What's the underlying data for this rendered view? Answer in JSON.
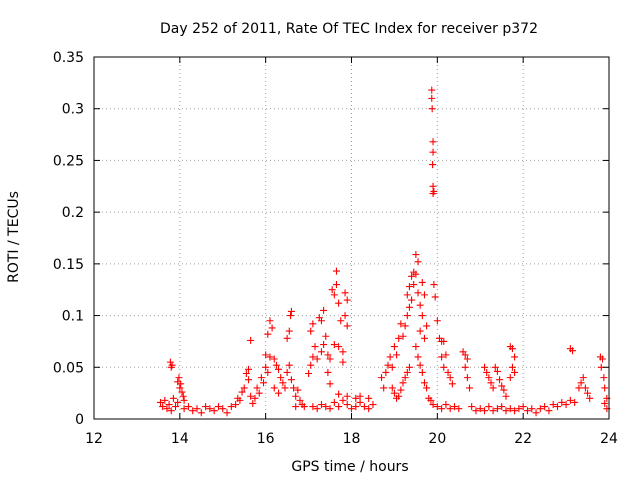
{
  "chart_data": {
    "type": "scatter",
    "title": "Day 252 of 2011, Rate Of TEC Index for receiver p372",
    "xlabel": "GPS time / hours",
    "ylabel": "ROTI / TECUs",
    "xlim": [
      12,
      24
    ],
    "ylim": [
      0,
      0.35
    ],
    "x_ticks": [
      12,
      14,
      16,
      18,
      20,
      22,
      24
    ],
    "x_tick_labels": [
      "12",
      "14",
      "16",
      "18",
      "20",
      "22",
      "24"
    ],
    "y_ticks": [
      0,
      0.05,
      0.1,
      0.15,
      0.2,
      0.25,
      0.3,
      0.35
    ],
    "y_tick_labels": [
      "0",
      "0.05",
      "0.1",
      "0.15",
      "0.2",
      "0.25",
      "0.3",
      "0.35"
    ],
    "grid": true,
    "marker": "+",
    "series_color": "#ff0000",
    "points": [
      [
        13.55,
        0.016
      ],
      [
        13.6,
        0.012
      ],
      [
        13.65,
        0.018
      ],
      [
        13.7,
        0.01
      ],
      [
        13.75,
        0.014
      ],
      [
        13.8,
        0.008
      ],
      [
        13.85,
        0.02
      ],
      [
        13.9,
        0.012
      ],
      [
        13.95,
        0.016
      ],
      [
        13.78,
        0.055
      ],
      [
        13.82,
        0.052
      ],
      [
        13.8,
        0.05
      ],
      [
        13.95,
        0.036
      ],
      [
        14.0,
        0.03
      ],
      [
        14.05,
        0.026
      ],
      [
        14.02,
        0.034
      ],
      [
        14.08,
        0.022
      ],
      [
        13.98,
        0.04
      ],
      [
        14.1,
        0.018
      ],
      [
        14.1,
        0.01
      ],
      [
        14.2,
        0.012
      ],
      [
        14.3,
        0.008
      ],
      [
        14.4,
        0.01
      ],
      [
        14.5,
        0.006
      ],
      [
        14.6,
        0.012
      ],
      [
        14.7,
        0.01
      ],
      [
        14.8,
        0.008
      ],
      [
        14.9,
        0.012
      ],
      [
        15.0,
        0.01
      ],
      [
        15.1,
        0.006
      ],
      [
        15.2,
        0.012
      ],
      [
        15.3,
        0.014
      ],
      [
        15.35,
        0.02
      ],
      [
        15.4,
        0.018
      ],
      [
        15.45,
        0.026
      ],
      [
        15.5,
        0.03
      ],
      [
        15.55,
        0.044
      ],
      [
        15.6,
        0.048
      ],
      [
        15.6,
        0.038
      ],
      [
        15.65,
        0.022
      ],
      [
        15.7,
        0.015
      ],
      [
        15.65,
        0.076
      ],
      [
        15.75,
        0.02
      ],
      [
        15.8,
        0.03
      ],
      [
        15.85,
        0.025
      ],
      [
        15.9,
        0.04
      ],
      [
        15.95,
        0.035
      ],
      [
        16.0,
        0.05
      ],
      [
        16.05,
        0.045
      ],
      [
        16.1,
        0.06
      ],
      [
        16.0,
        0.062
      ],
      [
        16.05,
        0.082
      ],
      [
        16.1,
        0.095
      ],
      [
        16.15,
        0.088
      ],
      [
        16.2,
        0.058
      ],
      [
        16.25,
        0.052
      ],
      [
        16.3,
        0.048
      ],
      [
        16.35,
        0.04
      ],
      [
        16.4,
        0.035
      ],
      [
        16.2,
        0.03
      ],
      [
        16.3,
        0.025
      ],
      [
        16.45,
        0.03
      ],
      [
        16.5,
        0.045
      ],
      [
        16.55,
        0.052
      ],
      [
        16.5,
        0.078
      ],
      [
        16.55,
        0.085
      ],
      [
        16.58,
        0.1
      ],
      [
        16.6,
        0.104
      ],
      [
        16.6,
        0.038
      ],
      [
        16.65,
        0.03
      ],
      [
        16.7,
        0.022
      ],
      [
        16.75,
        0.028
      ],
      [
        16.8,
        0.018
      ],
      [
        16.7,
        0.012
      ],
      [
        16.85,
        0.014
      ],
      [
        16.9,
        0.012
      ],
      [
        17.0,
        0.044
      ],
      [
        17.05,
        0.052
      ],
      [
        17.1,
        0.06
      ],
      [
        17.05,
        0.085
      ],
      [
        17.1,
        0.092
      ],
      [
        17.15,
        0.07
      ],
      [
        17.2,
        0.058
      ],
      [
        17.25,
        0.098
      ],
      [
        17.3,
        0.095
      ],
      [
        17.35,
        0.105
      ],
      [
        17.3,
        0.065
      ],
      [
        17.35,
        0.072
      ],
      [
        17.4,
        0.08
      ],
      [
        17.45,
        0.062
      ],
      [
        17.5,
        0.058
      ],
      [
        17.45,
        0.045
      ],
      [
        17.5,
        0.034
      ],
      [
        17.55,
        0.125
      ],
      [
        17.6,
        0.12
      ],
      [
        17.65,
        0.13
      ],
      [
        17.65,
        0.143
      ],
      [
        17.7,
        0.112
      ],
      [
        17.75,
        0.095
      ],
      [
        17.6,
        0.072
      ],
      [
        17.7,
        0.07
      ],
      [
        17.8,
        0.065
      ],
      [
        17.85,
        0.122
      ],
      [
        17.9,
        0.115
      ],
      [
        17.85,
        0.1
      ],
      [
        17.9,
        0.09
      ],
      [
        17.8,
        0.055
      ],
      [
        17.1,
        0.012
      ],
      [
        17.2,
        0.01
      ],
      [
        17.3,
        0.014
      ],
      [
        17.4,
        0.012
      ],
      [
        17.5,
        0.01
      ],
      [
        17.6,
        0.016
      ],
      [
        17.7,
        0.012
      ],
      [
        17.8,
        0.018
      ],
      [
        17.9,
        0.014
      ],
      [
        18.0,
        0.01
      ],
      [
        18.1,
        0.012
      ],
      [
        18.2,
        0.016
      ],
      [
        18.3,
        0.012
      ],
      [
        18.4,
        0.01
      ],
      [
        18.5,
        0.014
      ],
      [
        17.7,
        0.024
      ],
      [
        17.9,
        0.022
      ],
      [
        18.1,
        0.02
      ],
      [
        18.2,
        0.022
      ],
      [
        18.4,
        0.02
      ],
      [
        18.7,
        0.04
      ],
      [
        18.75,
        0.03
      ],
      [
        18.8,
        0.045
      ],
      [
        18.85,
        0.052
      ],
      [
        18.9,
        0.06
      ],
      [
        18.95,
        0.05
      ],
      [
        19.0,
        0.07
      ],
      [
        19.05,
        0.062
      ],
      [
        19.1,
        0.078
      ],
      [
        19.15,
        0.092
      ],
      [
        19.2,
        0.08
      ],
      [
        19.25,
        0.09
      ],
      [
        19.3,
        0.1
      ],
      [
        18.95,
        0.03
      ],
      [
        19.0,
        0.025
      ],
      [
        19.05,
        0.02
      ],
      [
        19.1,
        0.022
      ],
      [
        19.15,
        0.028
      ],
      [
        19.2,
        0.035
      ],
      [
        19.25,
        0.04
      ],
      [
        19.3,
        0.045
      ],
      [
        19.35,
        0.05
      ],
      [
        19.3,
        0.12
      ],
      [
        19.35,
        0.128
      ],
      [
        19.4,
        0.138
      ],
      [
        19.45,
        0.142
      ],
      [
        19.5,
        0.14
      ],
      [
        19.55,
        0.152
      ],
      [
        19.5,
        0.159
      ],
      [
        19.45,
        0.13
      ],
      [
        19.4,
        0.115
      ],
      [
        19.35,
        0.108
      ],
      [
        19.55,
        0.122
      ],
      [
        19.6,
        0.11
      ],
      [
        19.65,
        0.132
      ],
      [
        19.7,
        0.12
      ],
      [
        19.65,
        0.1
      ],
      [
        19.6,
        0.085
      ],
      [
        19.7,
        0.078
      ],
      [
        19.75,
        0.09
      ],
      [
        19.5,
        0.07
      ],
      [
        19.55,
        0.06
      ],
      [
        19.6,
        0.052
      ],
      [
        19.65,
        0.045
      ],
      [
        19.7,
        0.035
      ],
      [
        19.75,
        0.03
      ],
      [
        19.8,
        0.02
      ],
      [
        19.85,
        0.018
      ],
      [
        19.87,
        0.318
      ],
      [
        19.87,
        0.31
      ],
      [
        19.88,
        0.3
      ],
      [
        19.9,
        0.268
      ],
      [
        19.9,
        0.258
      ],
      [
        19.89,
        0.246
      ],
      [
        19.9,
        0.225
      ],
      [
        19.92,
        0.22
      ],
      [
        19.9,
        0.218
      ],
      [
        19.92,
        0.13
      ],
      [
        19.95,
        0.118
      ],
      [
        20.0,
        0.095
      ],
      [
        20.05,
        0.078
      ],
      [
        20.1,
        0.075
      ],
      [
        20.15,
        0.075
      ],
      [
        20.1,
        0.06
      ],
      [
        20.2,
        0.062
      ],
      [
        20.15,
        0.05
      ],
      [
        20.25,
        0.045
      ],
      [
        20.3,
        0.04
      ],
      [
        20.35,
        0.034
      ],
      [
        19.9,
        0.014
      ],
      [
        20.0,
        0.012
      ],
      [
        20.1,
        0.01
      ],
      [
        20.2,
        0.014
      ],
      [
        20.3,
        0.01
      ],
      [
        20.4,
        0.012
      ],
      [
        20.5,
        0.01
      ],
      [
        20.6,
        0.065
      ],
      [
        20.65,
        0.062
      ],
      [
        20.7,
        0.058
      ],
      [
        20.65,
        0.05
      ],
      [
        20.7,
        0.04
      ],
      [
        20.75,
        0.03
      ],
      [
        20.8,
        0.012
      ],
      [
        20.9,
        0.008
      ],
      [
        21.0,
        0.01
      ],
      [
        21.1,
        0.008
      ],
      [
        21.2,
        0.012
      ],
      [
        21.3,
        0.008
      ],
      [
        21.4,
        0.01
      ],
      [
        21.5,
        0.012
      ],
      [
        21.6,
        0.008
      ],
      [
        21.7,
        0.01
      ],
      [
        21.8,
        0.008
      ],
      [
        21.9,
        0.01
      ],
      [
        21.1,
        0.05
      ],
      [
        21.15,
        0.045
      ],
      [
        21.2,
        0.04
      ],
      [
        21.25,
        0.035
      ],
      [
        21.3,
        0.03
      ],
      [
        21.35,
        0.05
      ],
      [
        21.4,
        0.046
      ],
      [
        21.45,
        0.038
      ],
      [
        21.5,
        0.032
      ],
      [
        21.55,
        0.028
      ],
      [
        21.6,
        0.022
      ],
      [
        21.7,
        0.07
      ],
      [
        21.75,
        0.068
      ],
      [
        21.8,
        0.06
      ],
      [
        21.75,
        0.05
      ],
      [
        21.8,
        0.045
      ],
      [
        21.7,
        0.04
      ],
      [
        22.0,
        0.012
      ],
      [
        22.1,
        0.008
      ],
      [
        22.2,
        0.01
      ],
      [
        22.3,
        0.006
      ],
      [
        22.4,
        0.01
      ],
      [
        22.5,
        0.012
      ],
      [
        22.6,
        0.008
      ],
      [
        22.7,
        0.014
      ],
      [
        22.8,
        0.012
      ],
      [
        22.9,
        0.016
      ],
      [
        23.0,
        0.014
      ],
      [
        23.1,
        0.018
      ],
      [
        23.2,
        0.016
      ],
      [
        23.1,
        0.068
      ],
      [
        23.15,
        0.066
      ],
      [
        23.3,
        0.03
      ],
      [
        23.35,
        0.035
      ],
      [
        23.4,
        0.04
      ],
      [
        23.45,
        0.03
      ],
      [
        23.5,
        0.025
      ],
      [
        23.55,
        0.02
      ],
      [
        23.8,
        0.06
      ],
      [
        23.85,
        0.058
      ],
      [
        23.82,
        0.05
      ],
      [
        23.88,
        0.04
      ],
      [
        23.9,
        0.03
      ],
      [
        23.95,
        0.02
      ],
      [
        23.9,
        0.015
      ],
      [
        23.95,
        0.01
      ]
    ]
  }
}
